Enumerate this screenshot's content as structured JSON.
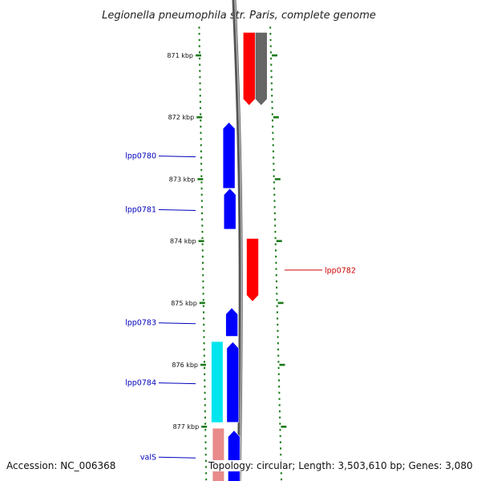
{
  "title": "Legionella pneumophila str. Paris, complete genome",
  "footer": {
    "accession": "Accession: NC_006368",
    "topology": "Topology: circular; Length: 3,503,610 bp; Genes: 3,080"
  },
  "colors": {
    "forward_cds": "#ff0000",
    "reverse_cds": "#0000ff",
    "rna": "#00e5ee",
    "faded_forward": "#e88a8a",
    "backbone": "#777777",
    "tick": "#1a7a1a",
    "forward_label": "#cc0000",
    "reverse_label": "#0000bb"
  },
  "ruler": {
    "ticks": [
      {
        "value": 871,
        "label": "871 kbp"
      },
      {
        "value": 872,
        "label": "872 kbp"
      },
      {
        "value": 873,
        "label": "873 kbp"
      },
      {
        "value": 874,
        "label": "874 kbp"
      },
      {
        "value": 875,
        "label": "875 kbp"
      },
      {
        "value": 876,
        "label": "876 kbp"
      },
      {
        "value": 877,
        "label": "877 kbp"
      }
    ]
  },
  "features": [
    {
      "name": "",
      "strand": "forward",
      "track": "fwd1",
      "color": "#ff0000",
      "start": 870.63,
      "end": 871.81,
      "arrow": "down"
    },
    {
      "name": "",
      "strand": "forward",
      "track": "fwd2",
      "color": "#666666",
      "start": 870.63,
      "end": 871.81,
      "arrow": "down"
    },
    {
      "name": "lpp0780",
      "strand": "reverse",
      "track": "rev1",
      "color": "#0000ff",
      "start": 872.08,
      "end": 873.15,
      "arrow": "up"
    },
    {
      "name": "lpp0781",
      "strand": "reverse",
      "track": "rev1",
      "color": "#0000ff",
      "start": 873.15,
      "end": 873.81,
      "arrow": "up"
    },
    {
      "name": "lpp0782",
      "strand": "forward",
      "track": "fwd1",
      "color": "#ff0000",
      "start": 873.96,
      "end": 874.98,
      "arrow": "down"
    },
    {
      "name": "lpp0783",
      "strand": "reverse",
      "track": "rev1",
      "color": "#0000ff",
      "start": 875.08,
      "end": 875.54,
      "arrow": "up"
    },
    {
      "name": "lpp0784",
      "strand": "reverse",
      "track": "rev1",
      "color": "#0000ff",
      "start": 875.63,
      "end": 876.93,
      "arrow": "up"
    },
    {
      "name": "",
      "strand": "reverse",
      "track": "rev2",
      "color": "#00e5ee",
      "start": 875.63,
      "end": 876.93,
      "arrow": "none"
    },
    {
      "name": "",
      "strand": "forward",
      "track": "rev2",
      "color": "#e88a8a",
      "start": 877.03,
      "end": 877.9,
      "arrow": "none"
    },
    {
      "name": "valS",
      "strand": "reverse",
      "track": "rev1",
      "color": "#0000ff",
      "start": 877.06,
      "end": 877.9,
      "arrow": "up"
    }
  ]
}
